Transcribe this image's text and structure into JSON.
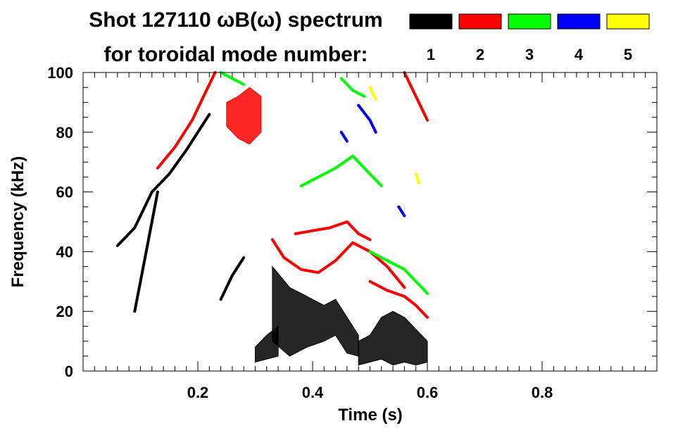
{
  "chart_data": {
    "type": "spectrogram",
    "title_line1": "Shot 127110 ωB(ω) spectrum",
    "title_line2": "for toroidal mode number:",
    "xlabel": "Time (s)",
    "ylabel": "Frequency (kHz)",
    "xlim": [
      0.0,
      1.0
    ],
    "ylim": [
      0,
      100
    ],
    "x_ticks": [
      0.2,
      0.4,
      0.6,
      0.8
    ],
    "x_tick_labels": [
      "0.2",
      "0.4",
      "0.6",
      "0.8"
    ],
    "y_ticks": [
      0,
      20,
      40,
      60,
      80,
      100
    ],
    "y_tick_labels": [
      "0",
      "20",
      "40",
      "60",
      "80",
      "100"
    ],
    "grid": false,
    "legend_position": "top-right",
    "legend": [
      {
        "label": "1",
        "color": "#000000"
      },
      {
        "label": "2",
        "color": "#ff0000"
      },
      {
        "label": "3",
        "color": "#00ff00"
      },
      {
        "label": "4",
        "color": "#0000ff"
      },
      {
        "label": "5",
        "color": "#ffff00"
      }
    ],
    "series": [
      {
        "mode": 1,
        "color": "#000000",
        "lines": [
          {
            "t": [
              0.06,
              0.09,
              0.12,
              0.15,
              0.18,
              0.2,
              0.22
            ],
            "f": [
              42,
              48,
              60,
              66,
              74,
              80,
              86
            ]
          },
          {
            "t": [
              0.09,
              0.11,
              0.13
            ],
            "f": [
              20,
              40,
              60
            ]
          },
          {
            "t": [
              0.24,
              0.26,
              0.28
            ],
            "f": [
              24,
              32,
              38
            ]
          }
        ],
        "bands": [
          {
            "t": [
              0.33,
              0.36,
              0.39,
              0.42,
              0.44,
              0.46,
              0.48
            ],
            "f_low": [
              10,
              5,
              8,
              10,
              12,
              6,
              5
            ],
            "f_high": [
              35,
              28,
              25,
              22,
              24,
              18,
              12
            ]
          },
          {
            "t": [
              0.48,
              0.5,
              0.52,
              0.54,
              0.56,
              0.58,
              0.6
            ],
            "f_low": [
              2,
              3,
              4,
              2,
              3,
              2,
              3
            ],
            "f_high": [
              10,
              12,
              18,
              20,
              18,
              14,
              10
            ]
          },
          {
            "t": [
              0.3,
              0.32,
              0.34
            ],
            "f_low": [
              3,
              4,
              5
            ],
            "f_high": [
              8,
              12,
              15
            ]
          }
        ]
      },
      {
        "mode": 2,
        "color": "#ff0000",
        "lines": [
          {
            "t": [
              0.13,
              0.16,
              0.19,
              0.21,
              0.23
            ],
            "f": [
              68,
              75,
              84,
              92,
              100
            ]
          },
          {
            "t": [
              0.33,
              0.35,
              0.38,
              0.41,
              0.44,
              0.47,
              0.5,
              0.53,
              0.56
            ],
            "f": [
              44,
              38,
              34,
              33,
              37,
              43,
              40,
              35,
              28
            ]
          },
          {
            "t": [
              0.37,
              0.4,
              0.43,
              0.46,
              0.48,
              0.5
            ],
            "f": [
              46,
              47,
              48,
              50,
              46,
              44
            ]
          },
          {
            "t": [
              0.5,
              0.53,
              0.56,
              0.58,
              0.6
            ],
            "f": [
              30,
              27,
              25,
              22,
              18
            ]
          },
          {
            "t": [
              0.56,
              0.58,
              0.6
            ],
            "f": [
              100,
              92,
              84
            ]
          }
        ],
        "bands": [
          {
            "t": [
              0.25,
              0.27,
              0.29,
              0.31
            ],
            "f_low": [
              82,
              78,
              76,
              80
            ],
            "f_high": [
              90,
              92,
              95,
              92
            ]
          }
        ]
      },
      {
        "mode": 3,
        "color": "#00ff00",
        "lines": [
          {
            "t": [
              0.38,
              0.41,
              0.44,
              0.47,
              0.5,
              0.52
            ],
            "f": [
              62,
              65,
              68,
              72,
              66,
              62
            ]
          },
          {
            "t": [
              0.45,
              0.47,
              0.49
            ],
            "f": [
              98,
              94,
              92
            ]
          },
          {
            "t": [
              0.24,
              0.26,
              0.28
            ],
            "f": [
              100,
              98,
              96
            ]
          },
          {
            "t": [
              0.5,
              0.52,
              0.54,
              0.56,
              0.58,
              0.6
            ],
            "f": [
              40,
              38,
              36,
              34,
              30,
              26
            ]
          }
        ],
        "bands": []
      },
      {
        "mode": 4,
        "color": "#0000ff",
        "lines": [
          {
            "t": [
              0.48,
              0.5,
              0.51
            ],
            "f": [
              89,
              84,
              80
            ]
          },
          {
            "t": [
              0.45,
              0.46
            ],
            "f": [
              80,
              77
            ]
          },
          {
            "t": [
              0.55,
              0.56
            ],
            "f": [
              55,
              52
            ]
          }
        ],
        "bands": []
      },
      {
        "mode": 5,
        "color": "#ffff00",
        "lines": [
          {
            "t": [
              0.5,
              0.51
            ],
            "f": [
              95,
              91
            ]
          },
          {
            "t": [
              0.58,
              0.585
            ],
            "f": [
              66,
              63
            ]
          }
        ],
        "bands": []
      }
    ]
  }
}
